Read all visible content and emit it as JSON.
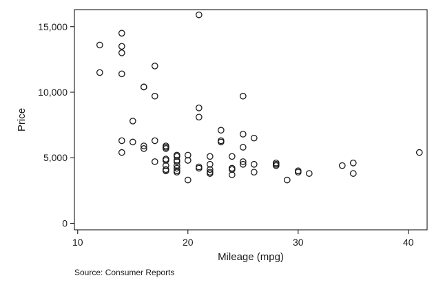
{
  "chart_data": {
    "type": "scatter",
    "title": "",
    "xlabel": "Mileage (mpg)",
    "ylabel": "Price",
    "note": "Source: Consumer Reports",
    "xlim": [
      9.7,
      41.7
    ],
    "ylim": [
      -500,
      16300
    ],
    "xticks": [
      10,
      20,
      30,
      40
    ],
    "xtick_labels": [
      "10",
      "20",
      "30",
      "40"
    ],
    "yticks": [
      0,
      5000,
      10000,
      15000
    ],
    "ytick_labels": [
      "0",
      "5,000",
      "10,000",
      "15,000"
    ],
    "grid": false,
    "legend": "none",
    "marker": "hollow-circle",
    "colors": {
      "marker": "#1a1a1a",
      "axis": "#000000",
      "background": "#ffffff"
    },
    "points": [
      {
        "x": 12,
        "y": 13600
      },
      {
        "x": 12,
        "y": 11500
      },
      {
        "x": 14,
        "y": 14500
      },
      {
        "x": 14,
        "y": 13500
      },
      {
        "x": 14,
        "y": 13000
      },
      {
        "x": 14,
        "y": 11400
      },
      {
        "x": 14,
        "y": 6300
      },
      {
        "x": 14,
        "y": 5400
      },
      {
        "x": 15,
        "y": 7800
      },
      {
        "x": 15,
        "y": 6200
      },
      {
        "x": 16,
        "y": 10400
      },
      {
        "x": 16,
        "y": 10400
      },
      {
        "x": 16,
        "y": 5900
      },
      {
        "x": 16,
        "y": 5700
      },
      {
        "x": 17,
        "y": 12000
      },
      {
        "x": 17,
        "y": 9700
      },
      {
        "x": 17,
        "y": 6300
      },
      {
        "x": 17,
        "y": 4700
      },
      {
        "x": 18,
        "y": 5900
      },
      {
        "x": 18,
        "y": 5800
      },
      {
        "x": 18,
        "y": 5700
      },
      {
        "x": 18,
        "y": 4900
      },
      {
        "x": 18,
        "y": 4800
      },
      {
        "x": 18,
        "y": 4400
      },
      {
        "x": 18,
        "y": 4100
      },
      {
        "x": 18,
        "y": 4000
      },
      {
        "x": 19,
        "y": 5200
      },
      {
        "x": 19,
        "y": 5100
      },
      {
        "x": 19,
        "y": 4800
      },
      {
        "x": 19,
        "y": 4700
      },
      {
        "x": 19,
        "y": 4400
      },
      {
        "x": 19,
        "y": 4200
      },
      {
        "x": 19,
        "y": 4000
      },
      {
        "x": 19,
        "y": 3900
      },
      {
        "x": 20,
        "y": 5200
      },
      {
        "x": 20,
        "y": 4800
      },
      {
        "x": 20,
        "y": 3300
      },
      {
        "x": 21,
        "y": 15900
      },
      {
        "x": 21,
        "y": 8800
      },
      {
        "x": 21,
        "y": 8100
      },
      {
        "x": 21,
        "y": 4300
      },
      {
        "x": 21,
        "y": 4200
      },
      {
        "x": 22,
        "y": 5100
      },
      {
        "x": 22,
        "y": 4500
      },
      {
        "x": 22,
        "y": 4100
      },
      {
        "x": 22,
        "y": 3900
      },
      {
        "x": 22,
        "y": 3800
      },
      {
        "x": 23,
        "y": 7100
      },
      {
        "x": 23,
        "y": 6300
      },
      {
        "x": 23,
        "y": 6200
      },
      {
        "x": 24,
        "y": 5100
      },
      {
        "x": 24,
        "y": 4200
      },
      {
        "x": 24,
        "y": 4100
      },
      {
        "x": 24,
        "y": 3700
      },
      {
        "x": 25,
        "y": 9700
      },
      {
        "x": 25,
        "y": 6800
      },
      {
        "x": 25,
        "y": 5800
      },
      {
        "x": 25,
        "y": 4700
      },
      {
        "x": 25,
        "y": 4500
      },
      {
        "x": 26,
        "y": 6500
      },
      {
        "x": 26,
        "y": 4500
      },
      {
        "x": 26,
        "y": 3900
      },
      {
        "x": 28,
        "y": 4600
      },
      {
        "x": 28,
        "y": 4500
      },
      {
        "x": 28,
        "y": 4400
      },
      {
        "x": 29,
        "y": 3300
      },
      {
        "x": 30,
        "y": 4000
      },
      {
        "x": 30,
        "y": 3900
      },
      {
        "x": 31,
        "y": 3800
      },
      {
        "x": 34,
        "y": 4400
      },
      {
        "x": 35,
        "y": 4600
      },
      {
        "x": 35,
        "y": 3800
      },
      {
        "x": 41,
        "y": 5400
      }
    ]
  }
}
